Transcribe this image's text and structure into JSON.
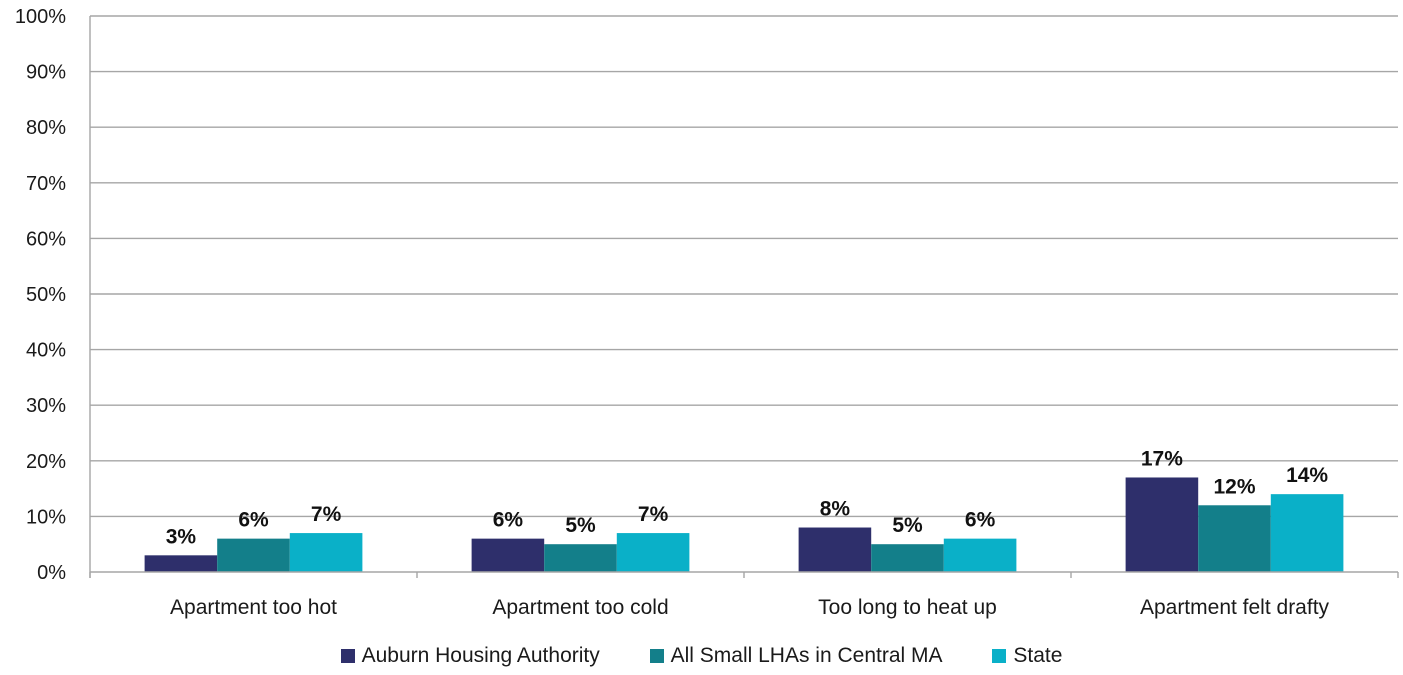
{
  "chart_data": {
    "type": "bar",
    "categories": [
      "Apartment too hot",
      "Apartment too cold",
      "Too long to heat up",
      "Apartment felt drafty"
    ],
    "series": [
      {
        "name": "Auburn Housing Authority",
        "values": [
          3,
          6,
          8,
          17
        ],
        "labels": [
          "3%",
          "6%",
          "8%",
          "17%"
        ],
        "color": "#2e2f6b"
      },
      {
        "name": "All Small LHAs in Central MA",
        "values": [
          6,
          5,
          5,
          12
        ],
        "labels": [
          "6%",
          "5%",
          "5%",
          "12%"
        ],
        "color": "#137f8a"
      },
      {
        "name": "State",
        "values": [
          7,
          7,
          6,
          14
        ],
        "labels": [
          "7%",
          "7%",
          "6%",
          "14%"
        ],
        "color": "#0ab0c8"
      }
    ],
    "y_ticks": [
      "0%",
      "10%",
      "20%",
      "30%",
      "40%",
      "50%",
      "60%",
      "70%",
      "80%",
      "90%",
      "100%"
    ],
    "ylim": [
      0,
      100
    ],
    "title": "",
    "xlabel": "",
    "ylabel": "",
    "grid": true,
    "legend_position": "bottom",
    "gridline_color": "#a6a6a6"
  }
}
